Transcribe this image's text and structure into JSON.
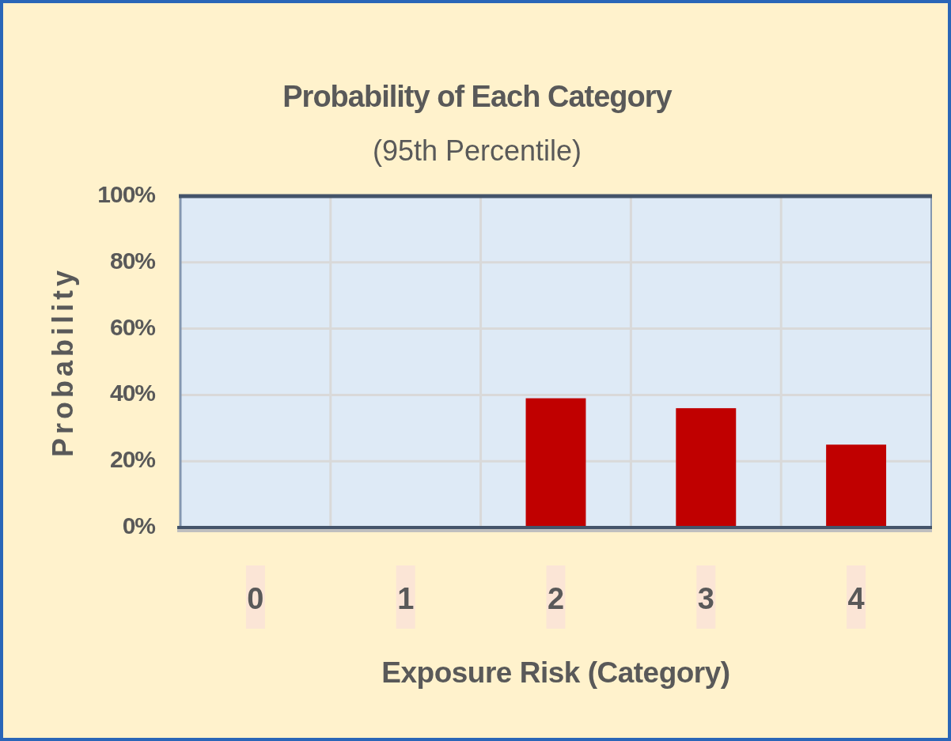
{
  "chart_data": {
    "type": "bar",
    "title": "Probability of Each Category",
    "subtitle": "(95th Percentile)",
    "xlabel": "Exposure Risk (Category)",
    "ylabel": "Probability",
    "categories": [
      "0",
      "1",
      "2",
      "3",
      "4"
    ],
    "values": [
      0,
      0,
      39,
      36,
      25
    ],
    "color": "#c00000",
    "ylim": [
      0,
      100
    ],
    "yticks": [
      {
        "value": 0,
        "label": "0%"
      },
      {
        "value": 20,
        "label": "20%"
      },
      {
        "value": 40,
        "label": "40%"
      },
      {
        "value": 60,
        "label": "60%"
      },
      {
        "value": 80,
        "label": "80%"
      },
      {
        "value": 100,
        "label": "100%"
      }
    ],
    "grid": true
  }
}
